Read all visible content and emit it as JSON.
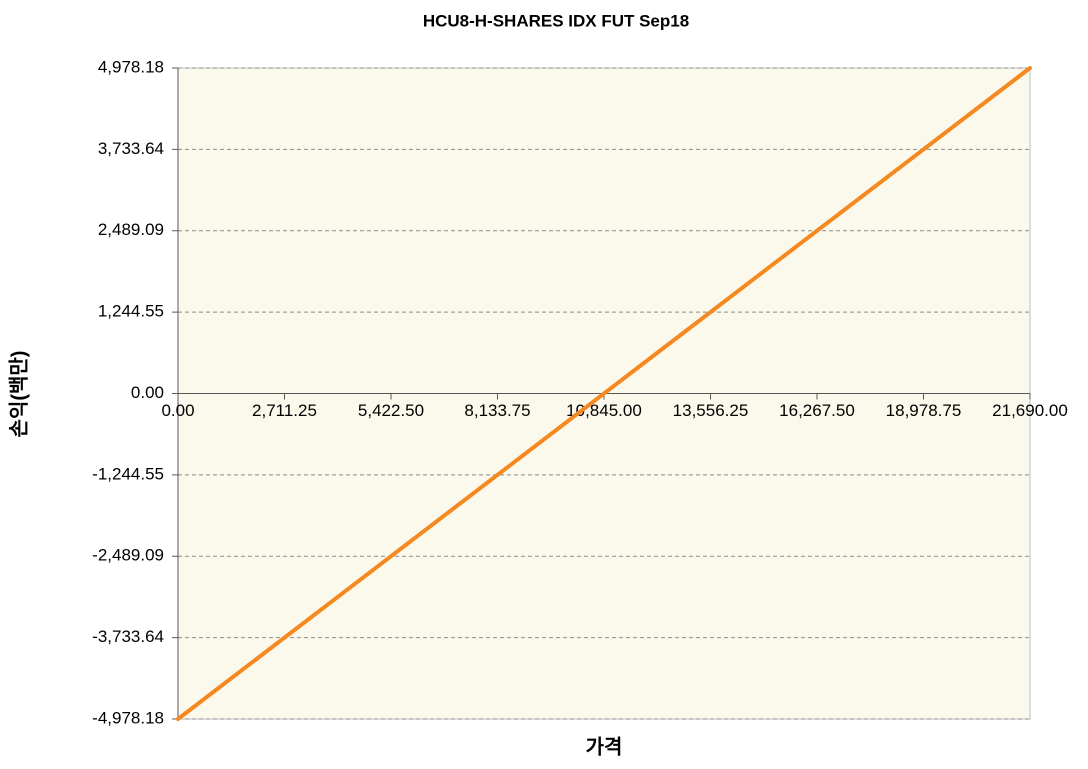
{
  "chart_data": {
    "type": "line",
    "title": "HCU8-H-SHARES IDX FUT Sep18",
    "x_label": "가격",
    "y_label": "손익(백만)",
    "x": [
      0,
      21690
    ],
    "series": [
      {
        "name": "손익",
        "color": "#f5891f",
        "values": [
          -4978.18,
          4978.18
        ]
      }
    ],
    "xlim": [
      0,
      21690
    ],
    "ylim": [
      -4978.18,
      4978.18
    ],
    "xticks": [
      {
        "value": 0,
        "label": "0.00"
      },
      {
        "value": 2711.25,
        "label": "2,711.25"
      },
      {
        "value": 5422.5,
        "label": "5,422.50"
      },
      {
        "value": 8133.75,
        "label": "8,133.75"
      },
      {
        "value": 10845,
        "label": "10,845.00"
      },
      {
        "value": 13556.25,
        "label": "13,556.25"
      },
      {
        "value": 16267.5,
        "label": "16,267.50"
      },
      {
        "value": 18978.75,
        "label": "18,978.75"
      },
      {
        "value": 21690,
        "label": "21,690.00"
      }
    ],
    "yticks": [
      {
        "value": -4978.18,
        "label": "-4,978.18"
      },
      {
        "value": -3733.64,
        "label": "-3,733.64"
      },
      {
        "value": -2489.09,
        "label": "-2,489.09"
      },
      {
        "value": -1244.55,
        "label": "-1,244.55"
      },
      {
        "value": 0,
        "label": "0.00"
      },
      {
        "value": 1244.55,
        "label": "1,244.55"
      },
      {
        "value": 2489.09,
        "label": "2,489.09"
      },
      {
        "value": 3733.64,
        "label": "3,733.64"
      },
      {
        "value": 4978.18,
        "label": "4,978.18"
      }
    ],
    "grid": true
  }
}
